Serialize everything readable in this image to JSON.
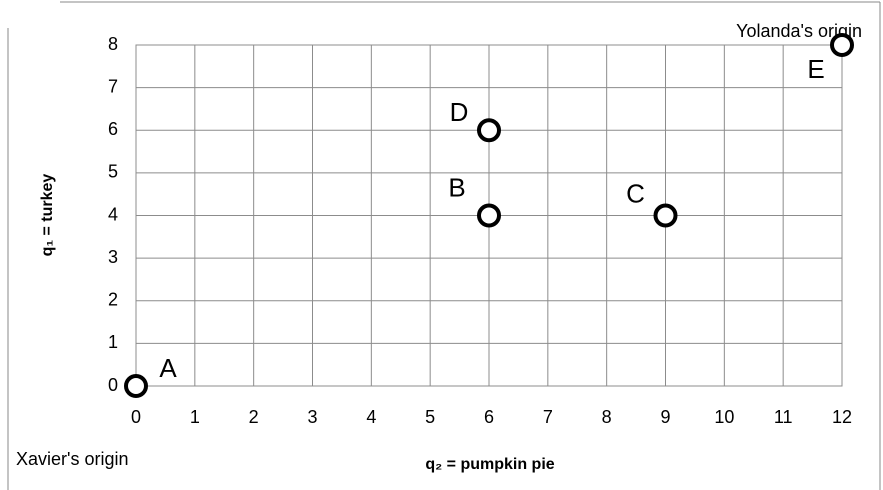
{
  "chart_data": {
    "type": "scatter",
    "x_label": "q₂ = pumpkin pie",
    "y_label": "q₁ = turkey",
    "x": [
      0,
      6,
      9,
      6,
      12
    ],
    "y": [
      0,
      4,
      4,
      6,
      8
    ],
    "point_labels": [
      "A",
      "B",
      "C",
      "D",
      "E"
    ],
    "color": "#000000",
    "annotations": [
      "Xavier's origin",
      "Yolanda's origin"
    ],
    "xlim": [
      0,
      12
    ],
    "ylim": [
      0,
      8
    ],
    "xticks": [
      0,
      1,
      2,
      3,
      4,
      5,
      6,
      7,
      8,
      9,
      10,
      11,
      12
    ],
    "yticks": [
      0,
      1,
      2,
      3,
      4,
      5,
      6,
      7,
      8
    ],
    "grid": true
  }
}
